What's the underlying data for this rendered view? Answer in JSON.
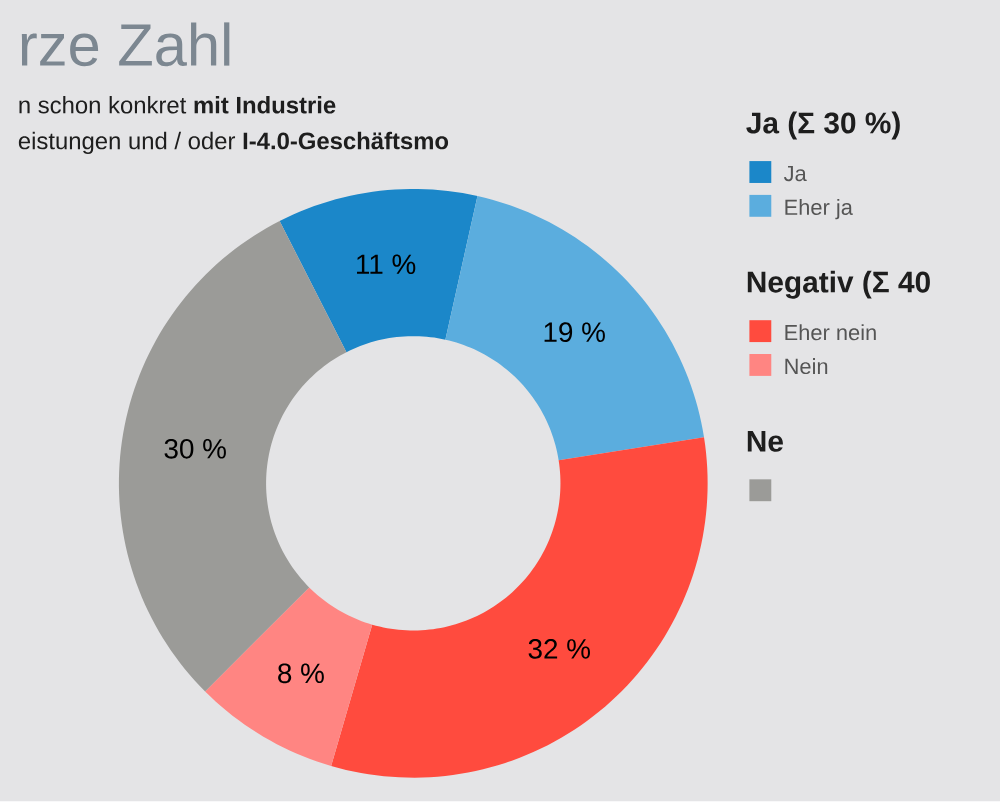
{
  "chart_data": {
    "type": "donut",
    "title": "rze Zahl",
    "subtitle": "n schon konkret **mit Industrie**",
    "annotations": [
      "eistungen und / oder **I-4.0-Geschäftsmo**",
      "Ja (Σ 30 %)",
      "Negativ (Σ 40",
      "Ne"
    ],
    "categories": [
      "Ja",
      "Eher ja",
      "Eher nein",
      "Nein",
      null
    ],
    "values": [
      11,
      19,
      32,
      8,
      30
    ],
    "colors": [
      "#1b87c9",
      "#5badde",
      "#ff4b3e",
      "#ff8582",
      "#9b9b98"
    ],
    "value_labels": [
      "11 %",
      "19 %",
      "32 %",
      "8 %",
      "30 %"
    ],
    "legend": "right"
  }
}
